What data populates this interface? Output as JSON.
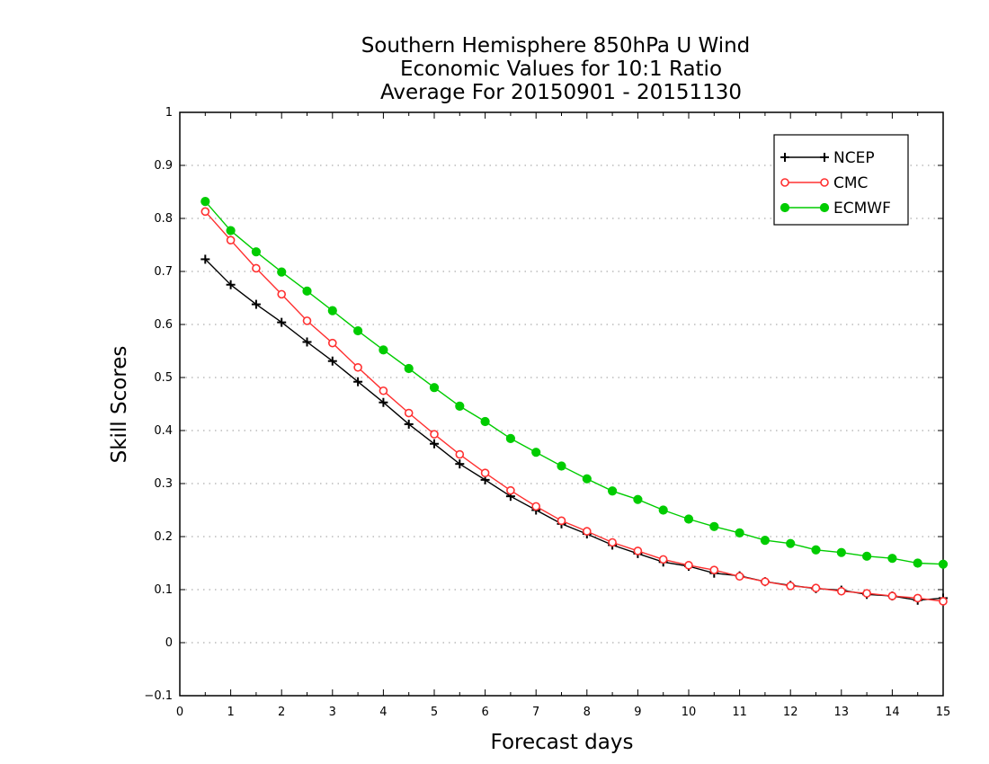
{
  "chart_data": {
    "type": "line",
    "title": [
      "Southern Hemisphere 850hPa U Wind",
      "Economic Values for 10:1 Ratio",
      "Average For 20150901 - 20151130"
    ],
    "xlabel": "Forecast days",
    "ylabel": "Skill Scores",
    "xlim": [
      0,
      15
    ],
    "ylim": [
      -0.1,
      1
    ],
    "xticks": [
      "0",
      "1",
      "2",
      "3",
      "4",
      "5",
      "6",
      "7",
      "8",
      "9",
      "10",
      "11",
      "12",
      "13",
      "14",
      "15"
    ],
    "yticks": [
      "-0.1",
      "0",
      "0.1",
      "0.2",
      "0.3",
      "0.4",
      "0.5",
      "0.6",
      "0.7",
      "0.8",
      "0.9",
      "1"
    ],
    "grid": "horizontal dotted",
    "legend_position": "top-right",
    "x": [
      0.5,
      1,
      1.5,
      2,
      2.5,
      3,
      3.5,
      4,
      4.5,
      5,
      5.5,
      6,
      6.5,
      7,
      7.5,
      8,
      8.5,
      9,
      9.5,
      10,
      10.5,
      11,
      11.5,
      12,
      12.5,
      13,
      13.5,
      14,
      14.5,
      15
    ],
    "series": [
      {
        "name": "NCEP",
        "color": "#000000",
        "marker": "plus",
        "values": [
          0.723,
          0.675,
          0.638,
          0.604,
          0.567,
          0.531,
          0.492,
          0.453,
          0.412,
          0.375,
          0.337,
          0.307,
          0.276,
          0.25,
          0.224,
          0.205,
          0.184,
          0.168,
          0.152,
          0.144,
          0.131,
          0.126,
          0.115,
          0.108,
          0.102,
          0.099,
          0.091,
          0.088,
          0.08,
          0.084
        ]
      },
      {
        "name": "CMC",
        "color": "#ff3030",
        "marker": "open-circle",
        "values": [
          0.813,
          0.759,
          0.706,
          0.657,
          0.607,
          0.565,
          0.519,
          0.475,
          0.433,
          0.393,
          0.355,
          0.32,
          0.287,
          0.257,
          0.23,
          0.21,
          0.189,
          0.173,
          0.157,
          0.146,
          0.137,
          0.125,
          0.115,
          0.107,
          0.103,
          0.097,
          0.093,
          0.088,
          0.084,
          0.078
        ]
      },
      {
        "name": "ECMWF",
        "color": "#00cc00",
        "marker": "filled-circle",
        "values": [
          0.832,
          0.777,
          0.737,
          0.699,
          0.663,
          0.626,
          0.588,
          0.552,
          0.517,
          0.481,
          0.446,
          0.417,
          0.385,
          0.359,
          0.333,
          0.309,
          0.286,
          0.27,
          0.25,
          0.233,
          0.219,
          0.207,
          0.193,
          0.187,
          0.175,
          0.17,
          0.163,
          0.159,
          0.15,
          0.148
        ]
      }
    ]
  }
}
